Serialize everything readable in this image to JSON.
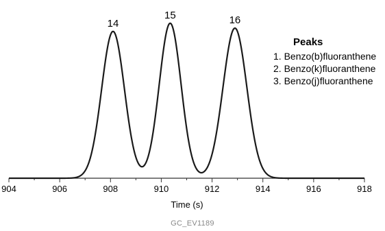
{
  "chart_data": {
    "type": "line",
    "title": "",
    "xlabel": "Time (s)",
    "ylabel": "",
    "xlim": [
      904,
      918
    ],
    "ylim": [
      0,
      1.0
    ],
    "x_ticks": [
      "904",
      "906",
      "908",
      "910",
      "912",
      "914",
      "916",
      "918"
    ],
    "series": [
      {
        "name": "",
        "peaks": [
          {
            "label": "14",
            "x": 908.1,
            "y": 0.9,
            "sigma": 0.45
          },
          {
            "label": "15",
            "x": 910.35,
            "y": 0.95,
            "sigma": 0.43
          },
          {
            "label": "16",
            "x": 912.9,
            "y": 0.92,
            "sigma": 0.47
          }
        ]
      }
    ],
    "grid": false,
    "line_color": "#1a1a1a"
  },
  "legend": {
    "title": "Peaks",
    "items": [
      "1. Benzo(b)fluoranthene",
      "2. Benzo(k)fluoranthene",
      "3. Benzo(j)fluoranthene"
    ]
  },
  "code": "GC_EV1189"
}
